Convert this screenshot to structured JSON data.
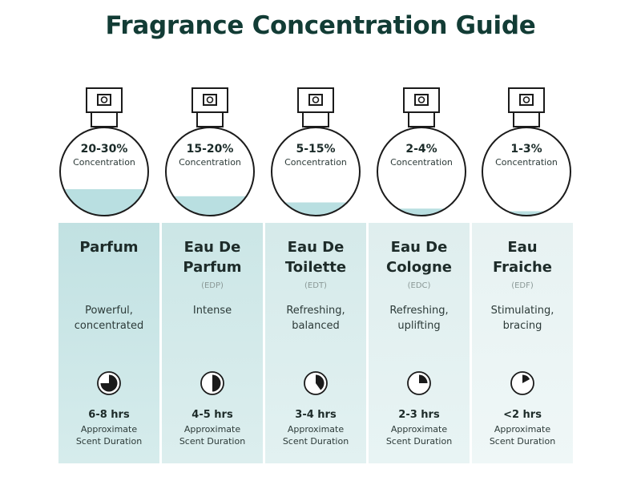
{
  "title": "Fragrance Concentration Guide",
  "colors": {
    "title": "#123c35",
    "liquid": "#b9dfe1",
    "outline": "#1b1b1b"
  },
  "fragrances": [
    {
      "percentage": "20-30%",
      "concentration_label": "Concentration",
      "fill_fraction": 0.3,
      "name_line1": "Parfum",
      "name_line2": "",
      "abbreviation": "",
      "desc_line1": "Powerful,",
      "desc_line2": "concentrated",
      "clock_fraction": 0.75,
      "duration": "6-8 hrs",
      "duration_line1": "Approximate",
      "duration_line2": "Scent Duration"
    },
    {
      "percentage": "15-20%",
      "concentration_label": "Concentration",
      "fill_fraction": 0.22,
      "name_line1": "Eau De",
      "name_line2": "Parfum",
      "abbreviation": "(EDP)",
      "desc_line1": "Intense",
      "desc_line2": "",
      "clock_fraction": 0.5,
      "duration": "4-5 hrs",
      "duration_line1": "Approximate",
      "duration_line2": "Scent Duration"
    },
    {
      "percentage": "5-15%",
      "concentration_label": "Concentration",
      "fill_fraction": 0.15,
      "name_line1": "Eau De",
      "name_line2": "Toilette",
      "abbreviation": "(EDT)",
      "desc_line1": "Refreshing,",
      "desc_line2": "balanced",
      "clock_fraction": 0.4,
      "duration": "3-4 hrs",
      "duration_line1": "Approximate",
      "duration_line2": "Scent Duration"
    },
    {
      "percentage": "2-4%",
      "concentration_label": "Concentration",
      "fill_fraction": 0.08,
      "name_line1": "Eau De",
      "name_line2": "Cologne",
      "abbreviation": "(EDC)",
      "desc_line1": "Refreshing,",
      "desc_line2": "uplifting",
      "clock_fraction": 0.25,
      "duration": "2-3 hrs",
      "duration_line1": "Approximate",
      "duration_line2": "Scent Duration"
    },
    {
      "percentage": "1-3%",
      "concentration_label": "Concentration",
      "fill_fraction": 0.05,
      "name_line1": "Eau",
      "name_line2": "Fraiche",
      "abbreviation": "(EDF)",
      "desc_line1": "Stimulating,",
      "desc_line2": "bracing",
      "clock_fraction": 0.17,
      "duration": "<2 hrs",
      "duration_line1": "Approximate",
      "duration_line2": "Scent Duration"
    }
  ]
}
